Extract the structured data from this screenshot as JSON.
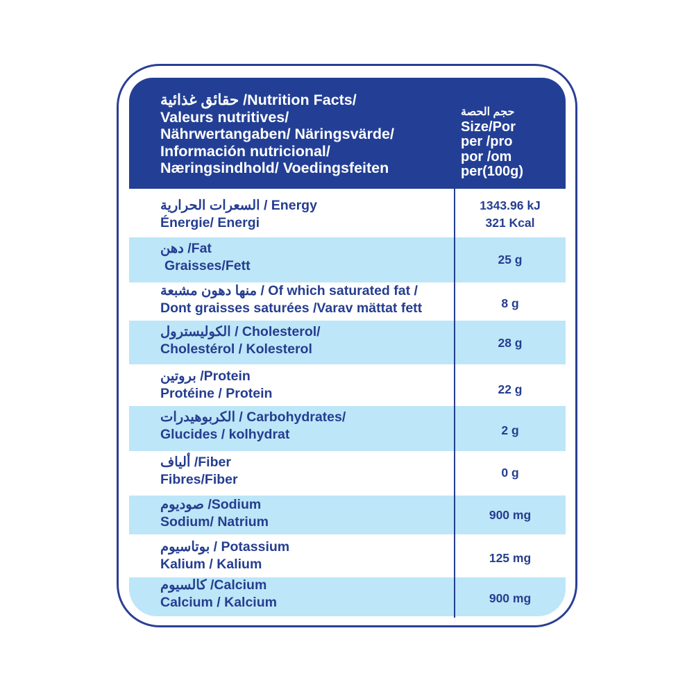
{
  "header": {
    "title_arabic": "حقائق غذائية",
    "title_line1": "/Nutrition Facts/",
    "title_line2": "Valeurs nutritives/",
    "title_line3": "Nährwertangaben/ Näringsvärde/",
    "title_line4": "Información nutricional/",
    "title_line5": "Næringsindhold/ Voedingsfeiten",
    "serving_arabic": "حجم الحصة",
    "serving_line1": "Size/Por",
    "serving_line2": "per /pro",
    "serving_line3": "por /om",
    "serving_line4": "per(100g)"
  },
  "rows": [
    {
      "arabic": "السعرات الحرارية",
      "line1": "/ Energy",
      "line2": "Énergie/ Energi",
      "value": "1343.96 kJ",
      "value2": "321 Kcal"
    },
    {
      "arabic": "دهن",
      "line1": "/Fat",
      "line2": "Graisses/Fett",
      "value": "25 g"
    },
    {
      "arabic": "منها دهون مشبعة",
      "line1": "/ Of which saturated fat /",
      "line2": "Dont graisses saturées /Varav mättat fett",
      "value": "8 g"
    },
    {
      "arabic": "الكوليسترول",
      "line1": "/ Cholesterol/",
      "line2": "Cholestérol / Kolesterol",
      "value": "28 g"
    },
    {
      "arabic": "بروتين",
      "line1": "/Protein",
      "line2": "Protéine / Protein",
      "value": "22 g"
    },
    {
      "arabic": "الكربوهيدرات",
      "line1": "/ Carbohydrates/",
      "line2": "Glucides / kolhydrat",
      "value": "2 g"
    },
    {
      "arabic": "ألياف",
      "line1": "/Fiber",
      "line2": "Fibres/Fiber",
      "value": "0 g"
    },
    {
      "arabic": "صوديوم",
      "line1": "/Sodium",
      "line2": "Sodium/ Natrium",
      "value": "900 mg"
    },
    {
      "arabic": "بوتاسيوم",
      "line1": "/ Potassium",
      "line2": "Kalium / Kalium",
      "value": "125 mg"
    },
    {
      "arabic": "كالسيوم",
      "line1": "/Calcium",
      "line2": "Calcium / Kalcium",
      "value": "900 mg"
    }
  ],
  "colors": {
    "primary": "#233f95",
    "row_highlight": "#bde6f8",
    "text": "#253d90"
  }
}
